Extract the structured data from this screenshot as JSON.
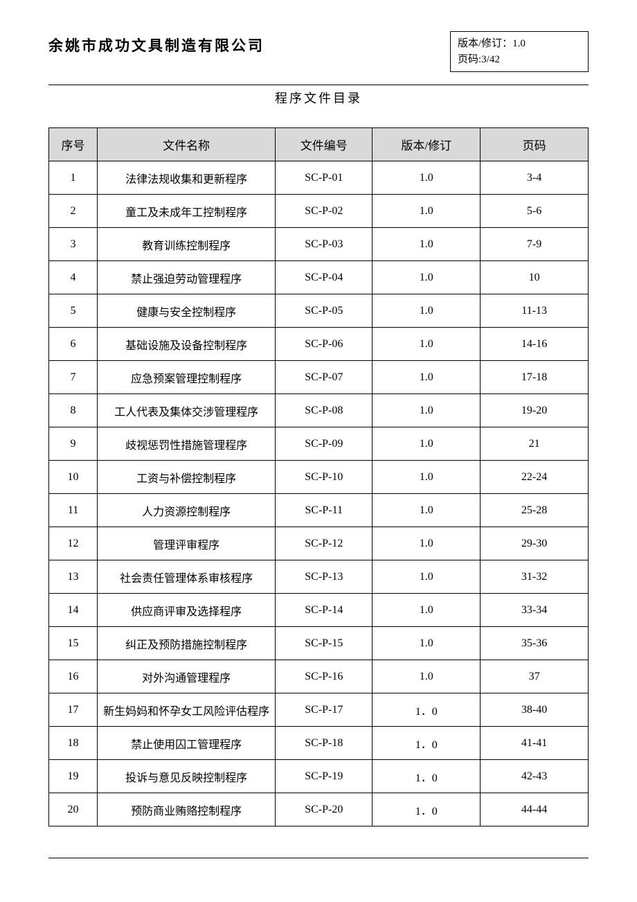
{
  "header": {
    "company_name": "余姚市成功文具制造有限公司",
    "version_label": "版本/修订：1.0",
    "page_label": "页码:3/42"
  },
  "doc_title": "程序文件目录",
  "table": {
    "columns": {
      "seq": "序号",
      "name": "文件名称",
      "code": "文件编号",
      "version": "版本/修订",
      "page": "页码"
    },
    "rows": [
      {
        "seq": "1",
        "name": "法律法规收集和更新程序",
        "code": "SC-P-01",
        "version": "1.0",
        "page": "3-4"
      },
      {
        "seq": "2",
        "name": "童工及未成年工控制程序",
        "code": "SC-P-02",
        "version": "1.0",
        "page": "5-6"
      },
      {
        "seq": "3",
        "name": "教育训练控制程序",
        "code": "SC-P-03",
        "version": "1.0",
        "page": "7-9"
      },
      {
        "seq": "4",
        "name": "禁止强迫劳动管理程序",
        "code": "SC-P-04",
        "version": "1.0",
        "page": "10"
      },
      {
        "seq": "5",
        "name": "健康与安全控制程序",
        "code": "SC-P-05",
        "version": "1.0",
        "page": "11-13"
      },
      {
        "seq": "6",
        "name": "基础设施及设备控制程序",
        "code": "SC-P-06",
        "version": "1.0",
        "page": "14-16"
      },
      {
        "seq": "7",
        "name": "应急预案管理控制程序",
        "code": "SC-P-07",
        "version": "1.0",
        "page": "17-18"
      },
      {
        "seq": "8",
        "name": "工人代表及集体交涉管理程序",
        "code": "SC-P-08",
        "version": "1.0",
        "page": "19-20"
      },
      {
        "seq": "9",
        "name": "歧视惩罚性措施管理程序",
        "code": "SC-P-09",
        "version": "1.0",
        "page": "21"
      },
      {
        "seq": "10",
        "name": "工资与补偿控制程序",
        "code": "SC-P-10",
        "version": "1.0",
        "page": "22-24"
      },
      {
        "seq": "11",
        "name": "人力资源控制程序",
        "code": "SC-P-11",
        "version": "1.0",
        "page": "25-28"
      },
      {
        "seq": "12",
        "name": "管理评审程序",
        "code": "SC-P-12",
        "version": "1.0",
        "page": "29-30"
      },
      {
        "seq": "13",
        "name": "社会责任管理体系审核程序",
        "code": "SC-P-13",
        "version": "1.0",
        "page": "31-32"
      },
      {
        "seq": "14",
        "name": "供应商评审及选择程序",
        "code": "SC-P-14",
        "version": "1.0",
        "page": "33-34"
      },
      {
        "seq": "15",
        "name": "纠正及预防措施控制程序",
        "code": "SC-P-15",
        "version": "1.0",
        "page": "35-36"
      },
      {
        "seq": "16",
        "name": "对外沟通管理程序",
        "code": "SC-P-16",
        "version": "1.0",
        "page": "37"
      },
      {
        "seq": "17",
        "name": "新生妈妈和怀孕女工风险评估程序",
        "code": "SC-P-17",
        "version": "1．0",
        "page": "38-40"
      },
      {
        "seq": "18",
        "name": "禁止使用囚工管理程序",
        "code": "SC-P-18",
        "version": "1．0",
        "page": "41-41"
      },
      {
        "seq": "19",
        "name": "投诉与意见反映控制程序",
        "code": "SC-P-19",
        "version": "1．0",
        "page": "42-43"
      },
      {
        "seq": "20",
        "name": "预防商业贿赂控制程序",
        "code": "SC-P-20",
        "version": "1．0",
        "page": "44-44"
      }
    ]
  }
}
